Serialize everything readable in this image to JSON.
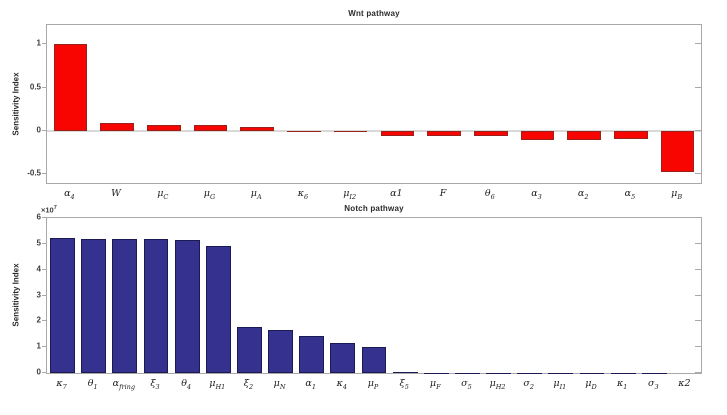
{
  "chart_data": [
    {
      "type": "bar",
      "title": "Wnt pathway",
      "ylabel": "Sensitivity Index",
      "xlabel": "",
      "legend_position": "none",
      "grid": false,
      "bar_color": "#f90501",
      "bar_edge_color": "#99231c",
      "ylim": [
        -0.6,
        1.22
      ],
      "zero_line": true,
      "yticks": [
        {
          "value": -0.5,
          "label": "-0.5"
        },
        {
          "value": 0,
          "label": "0"
        },
        {
          "value": 0.5,
          "label": "0.5"
        },
        {
          "value": 1,
          "label": "1"
        }
      ],
      "categories": [
        {
          "base": "α",
          "sub": "4"
        },
        {
          "base": "W",
          "sub": ""
        },
        {
          "base": "μ",
          "sub": "C"
        },
        {
          "base": "μ",
          "sub": "G"
        },
        {
          "base": "μ",
          "sub": "A"
        },
        {
          "base": "κ",
          "sub": "6"
        },
        {
          "base": "μ",
          "sub": "I2"
        },
        {
          "base": "α1",
          "sub": ""
        },
        {
          "base": "F",
          "sub": ""
        },
        {
          "base": "θ",
          "sub": "6"
        },
        {
          "base": "α",
          "sub": "3"
        },
        {
          "base": "α",
          "sub": "2"
        },
        {
          "base": "α",
          "sub": "5"
        },
        {
          "base": "μ",
          "sub": "B"
        }
      ],
      "values": [
        1.0,
        0.09,
        0.068,
        0.068,
        0.042,
        0.004,
        -0.008,
        -0.06,
        -0.06,
        -0.06,
        -0.105,
        -0.105,
        -0.098,
        -0.47
      ]
    },
    {
      "type": "bar",
      "title": "Notch pathway",
      "ylabel": "Sensitivity Index",
      "xlabel": "",
      "legend_position": "none",
      "grid": false,
      "bar_color": "#34318f",
      "bar_edge_color": "#1c1a52",
      "value_unit": "1e7",
      "exponent": {
        "text": "×10",
        "sup": "7"
      },
      "ylim": [
        0,
        6
      ],
      "zero_line": false,
      "yticks": [
        {
          "value": 0,
          "label": "0"
        },
        {
          "value": 1,
          "label": "1"
        },
        {
          "value": 2,
          "label": "2"
        },
        {
          "value": 3,
          "label": "3"
        },
        {
          "value": 4,
          "label": "4"
        },
        {
          "value": 5,
          "label": "5"
        },
        {
          "value": 6,
          "label": "6"
        }
      ],
      "categories": [
        {
          "base": "κ",
          "sub": "7"
        },
        {
          "base": "θ",
          "sub": "1"
        },
        {
          "base": "α",
          "sub": "fring"
        },
        {
          "base": "ξ",
          "sub": "3"
        },
        {
          "base": "θ",
          "sub": "4"
        },
        {
          "base": "μ",
          "sub": "H1"
        },
        {
          "base": "ξ",
          "sub": "2"
        },
        {
          "base": "μ",
          "sub": "N"
        },
        {
          "base": "α",
          "sub": "1"
        },
        {
          "base": "κ",
          "sub": "4"
        },
        {
          "base": "μ",
          "sub": "P"
        },
        {
          "base": "ξ",
          "sub": "5"
        },
        {
          "base": "μ",
          "sub": "F"
        },
        {
          "base": "σ",
          "sub": "5"
        },
        {
          "base": "μ",
          "sub": "H2"
        },
        {
          "base": "σ",
          "sub": "2"
        },
        {
          "base": "μ",
          "sub": "I1"
        },
        {
          "base": "μ",
          "sub": "D"
        },
        {
          "base": "κ",
          "sub": "1"
        },
        {
          "base": "σ",
          "sub": "3"
        },
        {
          "base": "κ2",
          "sub": ""
        }
      ],
      "values": [
        5.21,
        5.18,
        5.18,
        5.17,
        5.14,
        4.9,
        1.8,
        1.65,
        1.43,
        1.15,
        1.01,
        0.02,
        0.015,
        0.012,
        0.01,
        0.01,
        0.008,
        0.006,
        0.005,
        0.004,
        0.003
      ]
    }
  ]
}
